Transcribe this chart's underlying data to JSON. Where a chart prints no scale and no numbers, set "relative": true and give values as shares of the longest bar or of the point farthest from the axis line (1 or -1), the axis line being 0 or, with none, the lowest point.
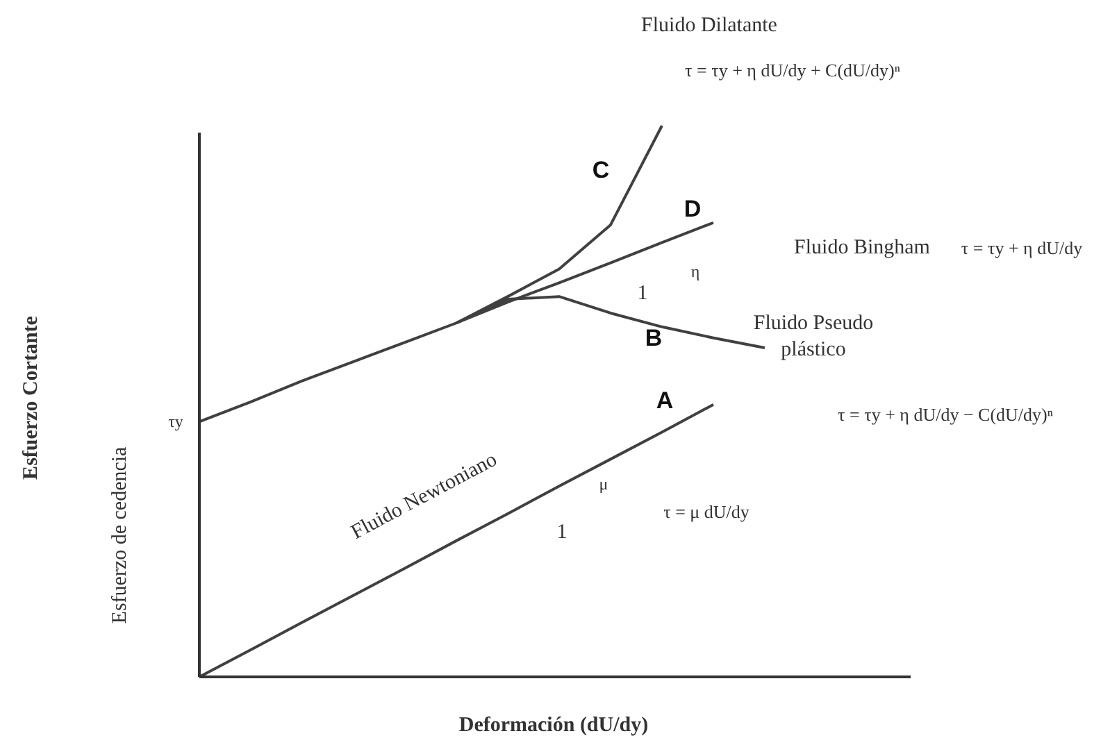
{
  "chart_data": {
    "type": "line",
    "relative": true,
    "xlabel": "Deformación (dU/dy)",
    "categories": [
      null,
      null,
      null,
      null,
      null,
      null,
      null,
      null,
      null,
      null,
      null,
      null
    ],
    "series": [
      {
        "name": "A",
        "color": "#404040",
        "values": [
          0,
          0.049,
          0.099,
          0.148,
          0.197,
          0.247,
          0.296,
          0.346,
          0.395,
          0.444,
          0.494,
          null
        ]
      },
      {
        "name": "D",
        "color": "#404040",
        "values": [
          0.463,
          0.499,
          0.537,
          0.572,
          0.607,
          0.642,
          0.68,
          0.715,
          0.751,
          0.788,
          0.824,
          null
        ]
      },
      {
        "name": "C",
        "color": "#404040",
        "values": [
          null,
          null,
          null,
          null,
          null,
          0.642,
          0.69,
          0.74,
          0.82,
          1.0,
          null,
          null
        ]
      },
      {
        "name": "B",
        "color": "#404040",
        "values": [
          null,
          null,
          null,
          null,
          null,
          0.642,
          0.685,
          0.69,
          0.66,
          0.635,
          0.615,
          0.597
        ]
      }
    ],
    "annotations": [
      "Fluido Dilatante",
      "τ = τy + η dU/dy + C(dU/dy)ⁿ",
      "Fluido Bingham",
      "τ = τy + η dU/dy",
      "Fluido Pseudo\nplástico",
      "τ = τy + η dU/dy − C(dU/dy)ⁿ",
      "Fluido Newtoniano",
      "τ = μ dU/dy",
      "τy",
      "Esfuerzo de cedencia",
      "1",
      "μ",
      "1",
      "η",
      "Esfuerzo Cortante"
    ]
  }
}
